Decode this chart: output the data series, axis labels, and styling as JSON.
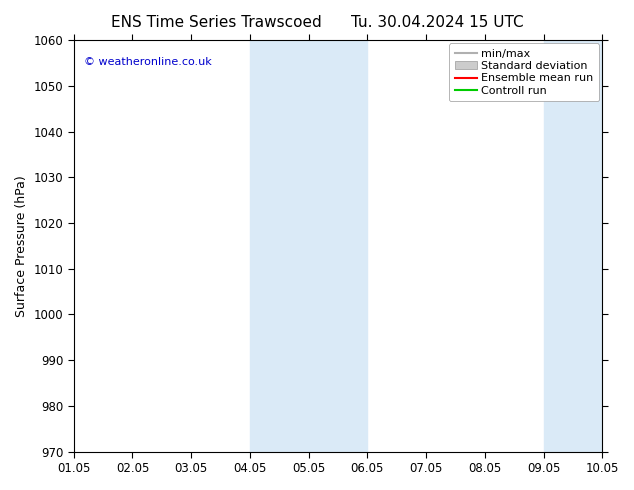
{
  "title_left": "ENS Time Series Trawscoed",
  "title_right": "Tu. 30.04.2024 15 UTC",
  "ylabel": "Surface Pressure (hPa)",
  "ylim": [
    970,
    1060
  ],
  "yticks": [
    970,
    980,
    990,
    1000,
    1010,
    1020,
    1030,
    1040,
    1050,
    1060
  ],
  "xlim": [
    0,
    9
  ],
  "xtick_positions": [
    0,
    1,
    2,
    3,
    4,
    5,
    6,
    7,
    8,
    9
  ],
  "xtick_labels": [
    "01.05",
    "02.05",
    "03.05",
    "04.05",
    "05.05",
    "06.05",
    "07.05",
    "08.05",
    "09.05",
    "10.05"
  ],
  "watermark": "© weatheronline.co.uk",
  "shaded_bands": [
    {
      "x_start": 3,
      "x_end": 4,
      "color": "#daeaf7"
    },
    {
      "x_start": 4,
      "x_end": 5,
      "color": "#daeaf7"
    },
    {
      "x_start": 8,
      "x_end": 9,
      "color": "#daeaf7"
    }
  ],
  "legend_items": [
    {
      "label": "min/max",
      "color": "#b0b0b0",
      "style": "line"
    },
    {
      "label": "Standard deviation",
      "color": "#cccccc",
      "style": "fill"
    },
    {
      "label": "Ensemble mean run",
      "color": "#ff0000",
      "style": "line"
    },
    {
      "label": "Controll run",
      "color": "#00cc00",
      "style": "line"
    }
  ],
  "bg_color": "#ffffff",
  "plot_bg_color": "#ffffff",
  "title_fontsize": 11,
  "tick_fontsize": 8.5,
  "ylabel_fontsize": 9,
  "legend_fontsize": 8
}
